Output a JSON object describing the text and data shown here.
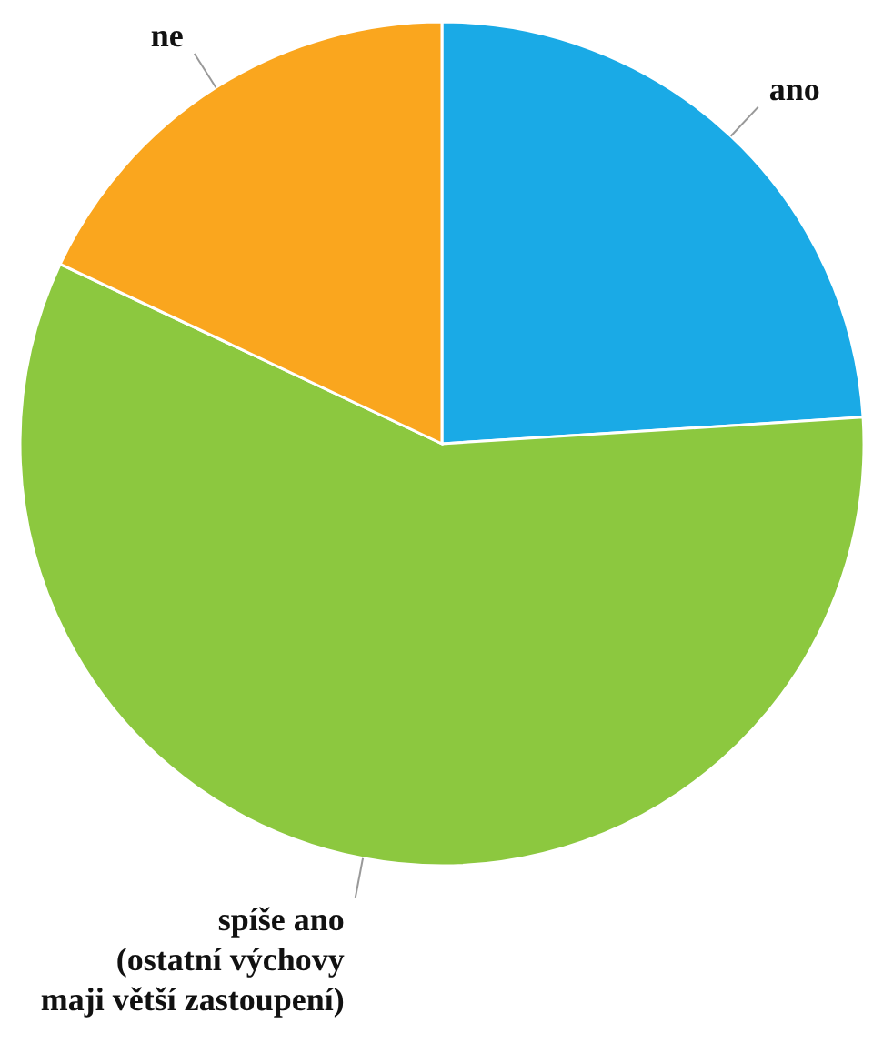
{
  "chart_data": {
    "type": "pie",
    "categories": [
      "ano",
      "spíše ano\n(ostatní výchovy\nmaji větší zastoupení)",
      "ne"
    ],
    "values": [
      24,
      58,
      18
    ],
    "colors": [
      "#1aaae6",
      "#8cc83f",
      "#faa61e"
    ]
  }
}
